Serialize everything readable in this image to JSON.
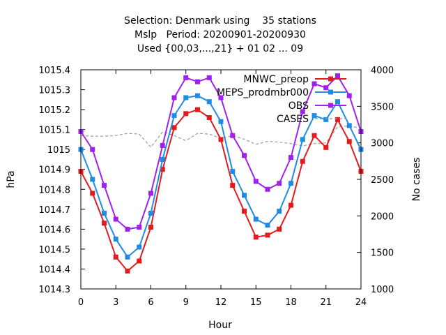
{
  "chart_data": {
    "type": "line",
    "title": [
      "Selection: Denmark using    35 stations",
      "Mslp   Period: 20200901-20200930",
      "Used {00,03,...,21} + 01 02 ... 09"
    ],
    "xlabel": "Hour",
    "ylabel": "hPa",
    "y2label": "No cases",
    "xlim": [
      0,
      24
    ],
    "ylim": [
      1014.3,
      1015.4
    ],
    "y2lim": [
      1000,
      4000
    ],
    "xticks": [
      "0",
      "3",
      "6",
      "9",
      "12",
      "15",
      "18",
      "21",
      "24"
    ],
    "yticks": [
      "1014.3",
      "1014.4",
      "1014.5",
      "1014.6",
      "1014.7",
      "1014.8",
      "1014.9",
      "1015",
      "1015.1",
      "1015.2",
      "1015.3",
      "1015.4"
    ],
    "y2ticks": [
      "1000",
      "1500",
      "2000",
      "2500",
      "3000",
      "3500",
      "4000"
    ],
    "grid": false,
    "legend_position": "top-right",
    "x": [
      0,
      1,
      2,
      3,
      4,
      5,
      6,
      7,
      8,
      9,
      10,
      11,
      12,
      13,
      14,
      15,
      16,
      17,
      18,
      19,
      20,
      21,
      22,
      23,
      24
    ],
    "series": [
      {
        "name": "MNWC_preop",
        "color": "#e41a1c",
        "axis": "left",
        "values": [
          1014.89,
          1014.78,
          1014.63,
          1014.46,
          1014.39,
          1014.44,
          1014.61,
          1014.9,
          1015.11,
          1015.18,
          1015.2,
          1015.16,
          1015.05,
          1014.82,
          1014.69,
          1014.56,
          1014.57,
          1014.6,
          1014.72,
          1014.94,
          1015.07,
          1015.01,
          1015.15,
          1015.04,
          1014.89
        ]
      },
      {
        "name": "MEPS_prodmbr000",
        "color": "#1e8be6",
        "axis": "left",
        "values": [
          1015.0,
          1014.85,
          1014.68,
          1014.55,
          1014.46,
          1014.51,
          1014.68,
          1014.95,
          1015.17,
          1015.26,
          1015.27,
          1015.24,
          1015.14,
          1014.89,
          1014.77,
          1014.65,
          1014.62,
          1014.69,
          1014.83,
          1015.05,
          1015.17,
          1015.15,
          1015.24,
          1015.12,
          1015.0
        ]
      },
      {
        "name": "OBS",
        "color": "#a020f0",
        "axis": "left",
        "values": [
          1015.09,
          1015.0,
          1014.82,
          1014.65,
          1014.6,
          1014.61,
          1014.78,
          1015.02,
          1015.26,
          1015.36,
          1015.34,
          1015.36,
          1015.26,
          1015.07,
          1014.97,
          1014.84,
          1014.8,
          1014.83,
          1014.96,
          1015.19,
          1015.33,
          1015.31,
          1015.37,
          1015.27,
          1015.09
        ]
      },
      {
        "name": "CASES",
        "color": "#999999",
        "axis": "right",
        "dashed": true,
        "values": [
          3100,
          3090,
          3090,
          3100,
          3130,
          3120,
          2940,
          3150,
          3100,
          3030,
          3130,
          3120,
          3060,
          3100,
          3050,
          2980,
          3020,
          3010,
          2990,
          2960,
          2990,
          3000,
          3220,
          3230,
          3200
        ]
      }
    ]
  }
}
